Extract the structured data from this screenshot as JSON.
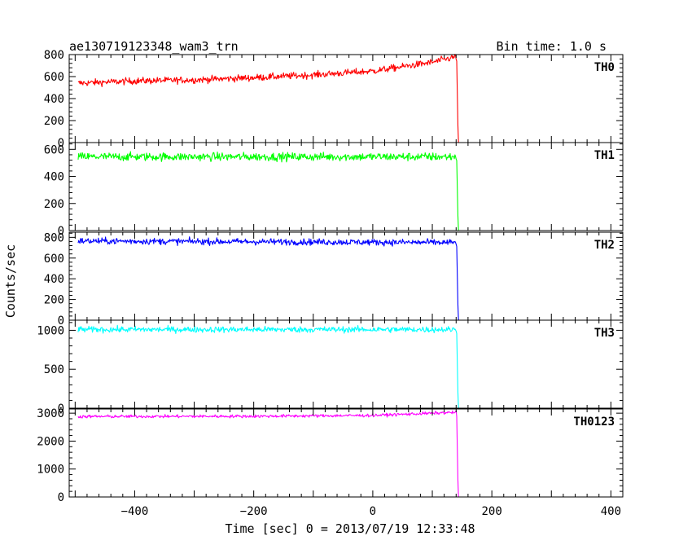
{
  "header": {
    "title": "ae130719123348_wam3_trn",
    "bin_time": "Bin time: 1.0 s"
  },
  "chart_data": {
    "type": "line",
    "xlabel": "Time [sec] 0 = 2013/07/19 12:33:48",
    "ylabel": "Counts/sec",
    "xlim": [
      -510,
      420
    ],
    "xticks": [
      -400,
      -200,
      0,
      200,
      400
    ],
    "xtick_labels": [
      "−400",
      "−200",
      "0",
      "200",
      "400"
    ],
    "drop_time": 143,
    "end_time": 400,
    "series": [
      {
        "name": "TH0",
        "color": "#ff0000",
        "ylim": [
          0,
          800
        ],
        "yticks": [
          0,
          200,
          400,
          600,
          800
        ],
        "level_x": [
          -495,
          -400,
          -300,
          -200,
          -100,
          0,
          100,
          140
        ],
        "level_y": [
          540,
          560,
          570,
          590,
          615,
          650,
          730,
          780
        ],
        "noise": 40,
        "post": 0
      },
      {
        "name": "TH1",
        "color": "#00ff00",
        "ylim": [
          0,
          650
        ],
        "yticks": [
          0,
          200,
          400,
          600
        ],
        "level_x": [
          -495,
          140
        ],
        "level_y": [
          545,
          545
        ],
        "noise": 40,
        "post": 0
      },
      {
        "name": "TH2",
        "color": "#0000ff",
        "ylim": [
          0,
          850
        ],
        "yticks": [
          0,
          200,
          400,
          600,
          800
        ],
        "level_x": [
          -495,
          140
        ],
        "level_y": [
          765,
          750
        ],
        "noise": 40,
        "post": 0
      },
      {
        "name": "TH3",
        "color": "#00ffff",
        "ylim": [
          0,
          1130
        ],
        "yticks": [
          0,
          500,
          1000
        ],
        "level_x": [
          -495,
          140
        ],
        "level_y": [
          1010,
          1010
        ],
        "noise": 50,
        "post": 0
      },
      {
        "name": "TH0123",
        "color": "#ff00ff",
        "ylim": [
          0,
          3150
        ],
        "yticks": [
          0,
          1000,
          2000,
          3000
        ],
        "level_x": [
          -495,
          -200,
          0,
          140
        ],
        "level_y": [
          2880,
          2890,
          2920,
          3030
        ],
        "noise": 70,
        "post": 0
      }
    ]
  }
}
